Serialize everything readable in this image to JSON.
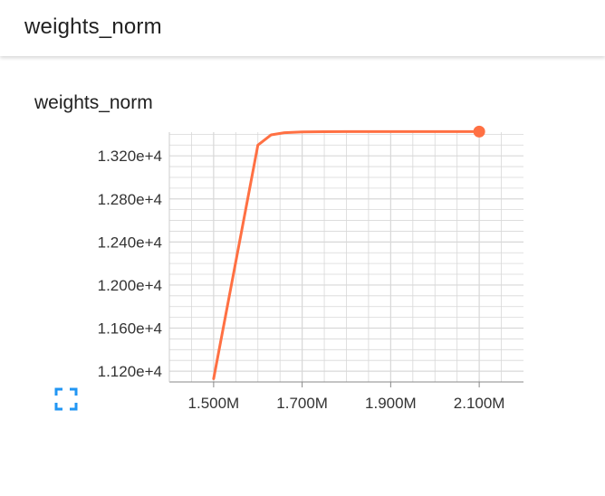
{
  "header": {
    "title": "weights_norm"
  },
  "card": {
    "title": "weights_norm"
  },
  "icons": {
    "fullscreen": "fullscreen-icon"
  },
  "colors": {
    "series": "#ff7043",
    "grid": "#d8d8d8",
    "axis": "#888888"
  },
  "chart_data": {
    "type": "line",
    "title": "weights_norm",
    "xlabel": "",
    "ylabel": "",
    "xlim": [
      1400000,
      2200000
    ],
    "ylim": [
      11100,
      13420
    ],
    "x_ticks": [
      1500000,
      1700000,
      1900000,
      2100000
    ],
    "x_tick_labels": [
      "1.500M",
      "1.700M",
      "1.900M",
      "2.100M"
    ],
    "y_ticks": [
      11200,
      11600,
      12000,
      12400,
      12800,
      13200
    ],
    "y_tick_labels": [
      "1.120e+4",
      "1.160e+4",
      "1.200e+4",
      "1.240e+4",
      "1.280e+4",
      "1.320e+4"
    ],
    "grid": true,
    "series": [
      {
        "x": [
          1500000,
          1600000,
          1630000,
          1660000,
          1700000,
          1750000,
          1800000,
          1900000,
          2000000,
          2100000
        ],
        "y": [
          11130,
          13300,
          13395,
          13415,
          13422,
          13424,
          13425,
          13425,
          13425,
          13425
        ]
      }
    ]
  }
}
